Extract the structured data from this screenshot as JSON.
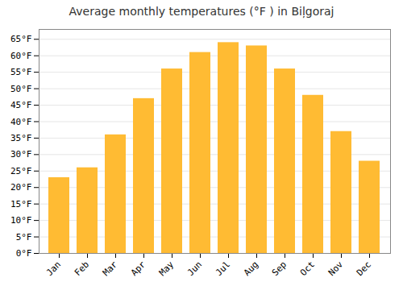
{
  "chart_data": {
    "type": "bar",
    "title": "Average monthly temperatures (°F ) in Biļgoraj",
    "categories": [
      "Jan",
      "Feb",
      "Mar",
      "Apr",
      "May",
      "Jun",
      "Jul",
      "Aug",
      "Sep",
      "Oct",
      "Nov",
      "Dec"
    ],
    "values": [
      23,
      26,
      36,
      47,
      56,
      61,
      64,
      63,
      56,
      48,
      37,
      28
    ],
    "color": "#FFBB33",
    "ylim": [
      0,
      68
    ],
    "yticks": [
      {
        "value": 0,
        "label": "0°F"
      },
      {
        "value": 5,
        "label": "5°F"
      },
      {
        "value": 10,
        "label": "10°F"
      },
      {
        "value": 15,
        "label": "15°F"
      },
      {
        "value": 20,
        "label": "20°F"
      },
      {
        "value": 25,
        "label": "25°F"
      },
      {
        "value": 30,
        "label": "30°F"
      },
      {
        "value": 35,
        "label": "35°F"
      },
      {
        "value": 40,
        "label": "40°F"
      },
      {
        "value": 45,
        "label": "45°F"
      },
      {
        "value": 50,
        "label": "50°F"
      },
      {
        "value": 55,
        "label": "55°F"
      },
      {
        "value": 60,
        "label": "60°F"
      },
      {
        "value": 65,
        "label": "65°F"
      }
    ],
    "grid": true
  }
}
